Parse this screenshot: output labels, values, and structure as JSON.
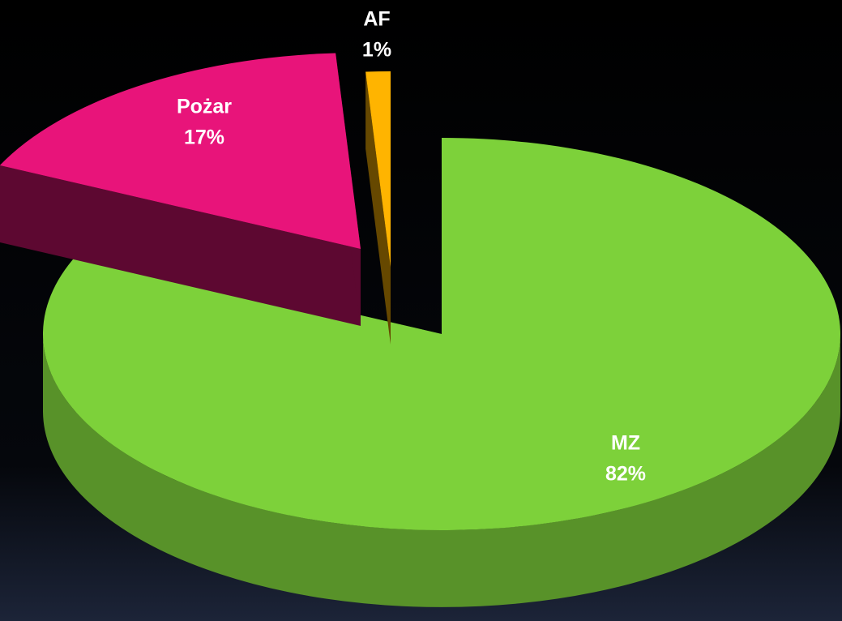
{
  "chart_data": {
    "type": "pie",
    "categories": [
      "MZ",
      "Pożar",
      "AF"
    ],
    "values": [
      82,
      17,
      1
    ],
    "value_labels": [
      "82%",
      "17%",
      "1%"
    ],
    "colors": [
      "#7dd13a",
      "#e8147a",
      "#ffb400"
    ]
  }
}
